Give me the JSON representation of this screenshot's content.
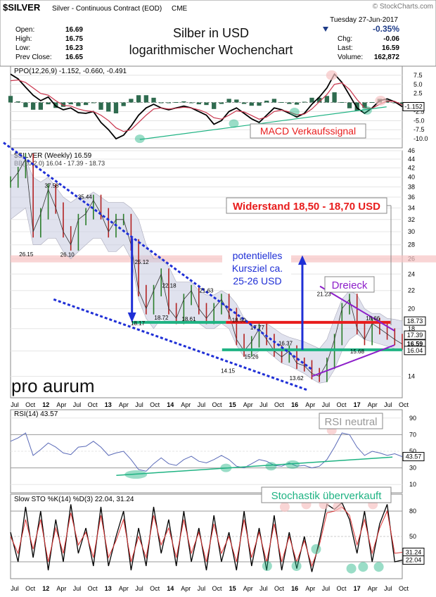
{
  "header": {
    "symbol": "$SILVER",
    "description": "Silver - Continuous Contract (EOD)",
    "exchange": "CME",
    "source": "© StockCharts.com",
    "date": "Tuesday  27-Jun-2017",
    "title_line1": "Silber in USD",
    "title_line2": "logarithmischer Wochenchart",
    "stats_left": [
      {
        "label": "Open:",
        "value": "16.69"
      },
      {
        "label": "High:",
        "value": "16.75"
      },
      {
        "label": "Low:",
        "value": "16.23"
      },
      {
        "label": "Prev Close:",
        "value": "16.65"
      }
    ],
    "change_pct": "-0.35%",
    "stats_right": [
      {
        "label": "Chg:",
        "value": "-0.06"
      },
      {
        "label": "Last:",
        "value": "16.59"
      },
      {
        "label": "Volume:",
        "value": "162,872"
      }
    ]
  },
  "watermark": "pro aurum",
  "x_axis": {
    "labels": [
      "Jul",
      "Oct",
      "12",
      "Apr",
      "Jul",
      "Oct",
      "13",
      "Apr",
      "Jul",
      "Oct",
      "14",
      "Apr",
      "Jul",
      "Oct",
      "15",
      "Apr",
      "Jul",
      "Oct",
      "16",
      "Apr",
      "Jul",
      "Oct",
      "17",
      "Apr",
      "Jul",
      "Oct"
    ]
  },
  "colors": {
    "price": "#2a7d2a",
    "price_down": "#b22222",
    "blue": "#1f2fd6",
    "green": "#1fb383",
    "red": "#e81c1c",
    "purple": "#8d1fc9",
    "pink": "#f6c3c3",
    "macd_red": "#c9344c"
  },
  "chart_data": [
    {
      "panel": "ppo",
      "type": "line",
      "title": "PPO(12,26,9) -1.152, -0.660, -0.491",
      "ylim": [
        -12.5,
        10
      ],
      "y_ticks": [
        7.5,
        5.0,
        2.5,
        -2.5,
        -5.0,
        -7.5,
        -10.0
      ],
      "last_value_label": "-1.152",
      "annotation": "MACD Verkaufssignal",
      "series": [
        {
          "name": "PPO",
          "values": [
            7.8,
            6.5,
            4.2,
            2.0,
            0.5,
            1.5,
            -1.0,
            -2.0,
            -1.5,
            -2.8,
            -3.0,
            -2.5,
            -5.5,
            -7.5,
            -10.0,
            -9.0,
            -6.5,
            -3.5,
            -1.5,
            -0.5,
            -1.5,
            -2.0,
            -1.5,
            -1.0,
            -1.5,
            -2.5,
            -3.5,
            -6.0,
            -5.0,
            -2.5,
            -1.5,
            -3.0,
            -4.5,
            -5.5,
            -3.5,
            -1.5,
            -2.0,
            -3.0,
            -4.0,
            -3.0,
            -0.5,
            1.5,
            4.0,
            7.8,
            5.5,
            2.0,
            -1.5,
            -3.0,
            -1.5,
            0.5,
            1.0,
            0.2,
            -1.152
          ]
        },
        {
          "name": "Signal",
          "values": [
            6.0,
            6.2,
            5.5,
            4.0,
            2.5,
            2.0,
            0.5,
            -0.8,
            -1.0,
            -1.8,
            -2.3,
            -2.5,
            -3.5,
            -5.0,
            -7.0,
            -8.0,
            -7.5,
            -5.5,
            -3.5,
            -1.8,
            -1.5,
            -1.8,
            -1.6,
            -1.3,
            -1.5,
            -2.0,
            -2.8,
            -4.2,
            -4.6,
            -3.5,
            -2.3,
            -2.6,
            -3.6,
            -4.6,
            -4.0,
            -2.5,
            -2.1,
            -2.6,
            -3.4,
            -3.2,
            -1.8,
            0.2,
            2.2,
            5.0,
            5.4,
            3.6,
            0.8,
            -1.5,
            -1.6,
            -0.5,
            0.4,
            0.3,
            -0.66
          ]
        }
      ],
      "histogram": [
        1.8,
        0.3,
        -1.3,
        -2.0,
        -2.0,
        -0.5,
        -1.5,
        -1.2,
        -0.5,
        -1.0,
        -0.7,
        0.0,
        -2.0,
        -2.5,
        -3.0,
        -1.0,
        1.0,
        2.0,
        2.0,
        1.3,
        0.0,
        -0.2,
        0.1,
        0.3,
        0.0,
        -0.5,
        -0.7,
        -1.8,
        -0.4,
        1.0,
        0.8,
        -0.4,
        -0.9,
        -0.9,
        0.5,
        1.0,
        0.1,
        -0.4,
        -0.6,
        0.2,
        1.3,
        1.3,
        1.8,
        2.8,
        0.1,
        -1.6,
        -2.3,
        -1.5,
        0.1,
        1.0,
        0.6,
        -0.1,
        -0.491
      ],
      "trendline": {
        "x": [
          0.33,
          0.96
        ],
        "y": [
          -10.2,
          -1.2
        ]
      }
    },
    {
      "panel": "price",
      "type": "line",
      "title": "$SILVER (Weekly) 16.59",
      "subtitle": "BB(20,2.0) 16.04 - 17.39 - 18.73",
      "scale": "log",
      "ylim": [
        12.5,
        46
      ],
      "y_ticks": [
        46,
        44,
        42,
        40,
        38,
        36,
        34,
        32,
        30,
        28,
        26,
        24,
        22,
        20,
        18,
        16,
        14
      ],
      "current_labels": [
        "18.73",
        "17.39",
        "16.59",
        "16.04"
      ],
      "series": [
        {
          "name": "$SILVER",
          "values": [
            39,
            41,
            44,
            30,
            33,
            37.5,
            34,
            30,
            28,
            32,
            33,
            35.4,
            33,
            30,
            32,
            32,
            28,
            22,
            20,
            22,
            24,
            20,
            19,
            21,
            22,
            20,
            19,
            20,
            21,
            19.5,
            17,
            16,
            16.8,
            18,
            17,
            16,
            15.5,
            16,
            15,
            14.8,
            14.2,
            14,
            15,
            17,
            20,
            21,
            18,
            17,
            18.5,
            18,
            17.5,
            17,
            16.6
          ]
        },
        {
          "name": "BB upper",
          "values": [
            45,
            45,
            44,
            40,
            39,
            40,
            38,
            36,
            35,
            36,
            36,
            37,
            36,
            35,
            35,
            35,
            34,
            32,
            28,
            26,
            26,
            25,
            23,
            23,
            23,
            22,
            21.5,
            21.5,
            22,
            21.5,
            20.5,
            19,
            18.5,
            18.5,
            18.5,
            18,
            17.5,
            17.2,
            17,
            16.8,
            16.5,
            16.2,
            17,
            19,
            21,
            22,
            21.5,
            20,
            19.5,
            19.5,
            19,
            18.9,
            18.73
          ]
        },
        {
          "name": "BB lower",
          "values": [
            32,
            33,
            34,
            28,
            28,
            29,
            29,
            27,
            26,
            27,
            28,
            29,
            29,
            27,
            27,
            28,
            26,
            21,
            19,
            18,
            19,
            18.5,
            18.5,
            18.5,
            19,
            18.5,
            18,
            18,
            18.5,
            18,
            16.5,
            15.5,
            15.5,
            16,
            16,
            15.5,
            15,
            14.8,
            14.5,
            14.2,
            13.8,
            13.5,
            13.6,
            14.5,
            16,
            17,
            17.5,
            17,
            16.8,
            16.6,
            16.4,
            16.2,
            16.04
          ]
        }
      ],
      "labeled_points": [
        {
          "x": 0.04,
          "y": 26.15,
          "label": "26.15"
        },
        {
          "x": 0.105,
          "y": 37.58,
          "label": "37.58"
        },
        {
          "x": 0.145,
          "y": 26.1,
          "label": "26.10"
        },
        {
          "x": 0.19,
          "y": 35.44,
          "label": "35.44"
        },
        {
          "x": 0.325,
          "y": 18.17,
          "label": "18.17"
        },
        {
          "x": 0.335,
          "y": 25.12,
          "label": "25.12"
        },
        {
          "x": 0.405,
          "y": 22.18,
          "label": "22.18"
        },
        {
          "x": 0.385,
          "y": 18.72,
          "label": "18.72"
        },
        {
          "x": 0.455,
          "y": 18.61,
          "label": "18.61"
        },
        {
          "x": 0.5,
          "y": 21.63,
          "label": "21.63"
        },
        {
          "x": 0.583,
          "y": 18.5,
          "label": "18.50"
        },
        {
          "x": 0.63,
          "y": 17.77,
          "label": "17.77"
        },
        {
          "x": 0.555,
          "y": 14.15,
          "label": "14.15"
        },
        {
          "x": 0.615,
          "y": 15.26,
          "label": "15.26"
        },
        {
          "x": 0.702,
          "y": 16.37,
          "label": "16.37"
        },
        {
          "x": 0.73,
          "y": 13.62,
          "label": "13.62"
        },
        {
          "x": 0.8,
          "y": 21.23,
          "label": "21.23"
        },
        {
          "x": 0.885,
          "y": 15.68,
          "label": "15.68"
        },
        {
          "x": 0.925,
          "y": 18.66,
          "label": "18.66"
        }
      ],
      "annotations": [
        "Widerstand 18,50 - 18,70 USD",
        "potentielles",
        "Kursziel ca.",
        "25-26 USD",
        "Dreieck"
      ],
      "levels": [
        {
          "name": "pink band",
          "y": 26
        },
        {
          "name": "resistance",
          "y": 18.6
        },
        {
          "name": "support",
          "y": 16.1
        }
      ]
    },
    {
      "panel": "rsi",
      "type": "line",
      "title": "RSI(14) 43.57",
      "ylim": [
        0,
        100
      ],
      "y_ticks": [
        90,
        70,
        50,
        30,
        10
      ],
      "last_value_label": "43.57",
      "annotation": "RSI neutral",
      "series": [
        {
          "name": "RSI",
          "values": [
            62,
            66,
            72,
            45,
            52,
            60,
            55,
            48,
            46,
            55,
            56,
            62,
            55,
            45,
            48,
            50,
            40,
            28,
            26,
            35,
            42,
            35,
            33,
            40,
            44,
            38,
            36,
            40,
            45,
            40,
            32,
            30,
            35,
            40,
            38,
            33,
            32,
            36,
            32,
            33,
            30,
            32,
            40,
            55,
            72,
            70,
            55,
            45,
            50,
            48,
            45,
            47,
            43.57
          ]
        }
      ],
      "trendline": {
        "x": [
          0.27,
          0.975
        ],
        "y": [
          21,
          43
        ]
      }
    },
    {
      "panel": "stoch",
      "type": "line",
      "title": "Slow STO %K(14) %D(3) 22.04, 31.24",
      "ylim": [
        0,
        100
      ],
      "y_ticks": [
        80,
        50,
        20
      ],
      "last_value_labels": [
        "31.24",
        "22.04"
      ],
      "annotation": "Stochastik überverkauft",
      "series": [
        {
          "name": "%K",
          "values": [
            55,
            20,
            85,
            25,
            80,
            10,
            70,
            20,
            88,
            30,
            60,
            15,
            85,
            15,
            50,
            80,
            10,
            60,
            15,
            85,
            30,
            70,
            15,
            80,
            20,
            60,
            10,
            75,
            20,
            55,
            10,
            80,
            15,
            60,
            10,
            75,
            10,
            55,
            12,
            50,
            8,
            45,
            88,
            82,
            90,
            70,
            30,
            80,
            20,
            65,
            88,
            20,
            22.04
          ]
        },
        {
          "name": "%D",
          "values": [
            50,
            30,
            70,
            35,
            70,
            20,
            60,
            30,
            78,
            40,
            55,
            25,
            75,
            25,
            45,
            70,
            20,
            50,
            25,
            75,
            40,
            60,
            25,
            70,
            30,
            55,
            20,
            65,
            30,
            50,
            20,
            70,
            25,
            55,
            20,
            65,
            20,
            50,
            20,
            45,
            15,
            40,
            78,
            80,
            85,
            75,
            40,
            70,
            30,
            60,
            80,
            30,
            31.24
          ]
        }
      ]
    }
  ]
}
